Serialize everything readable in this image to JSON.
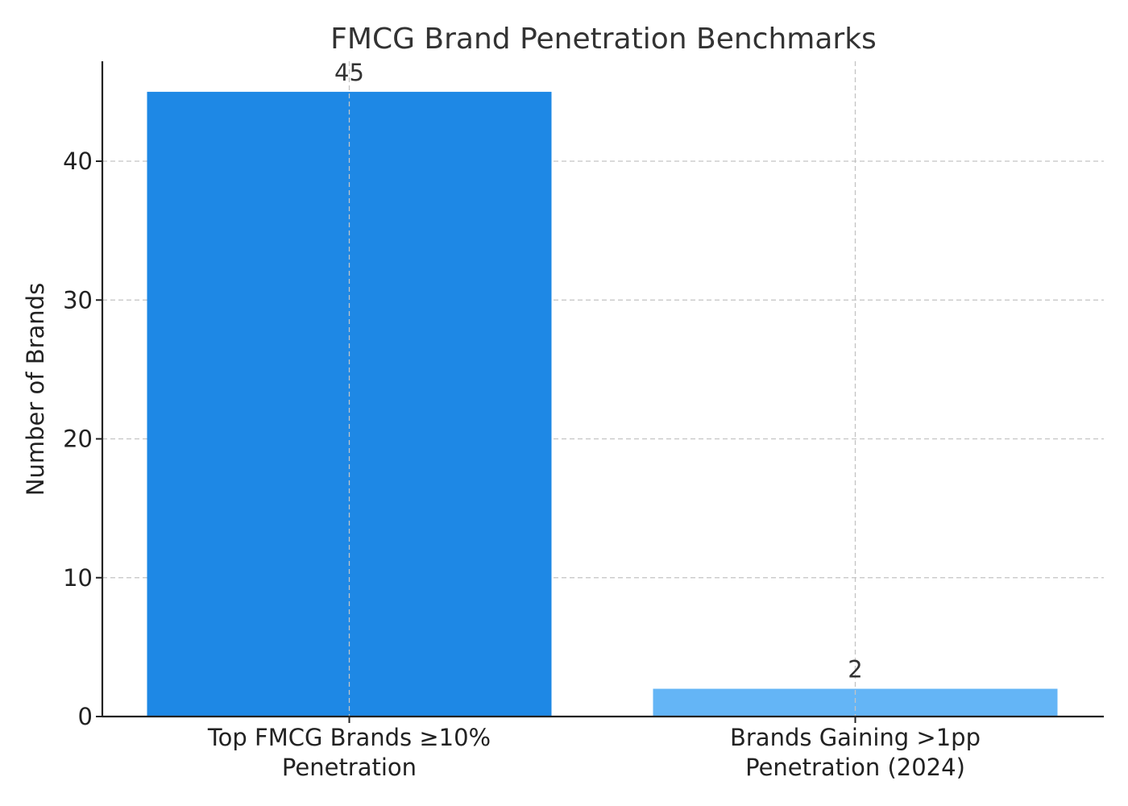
{
  "chart_data": {
    "type": "bar",
    "title": "FMCG Brand Penetration Benchmarks",
    "xlabel": "",
    "ylabel": "Number of Brands",
    "categories": [
      [
        "Top FMCG Brands ≥10%",
        "Penetration"
      ],
      [
        "Brands Gaining >1pp",
        "Penetration (2024)"
      ]
    ],
    "values": [
      45,
      2
    ],
    "data_labels": [
      "45",
      "2"
    ],
    "colors": [
      "#1e88e5",
      "#64b5f6"
    ],
    "ylim": [
      0,
      47.2
    ],
    "yticks": [
      0,
      10,
      20,
      30,
      40
    ],
    "ytick_labels": [
      "0",
      "10",
      "20",
      "30",
      "40"
    ],
    "grid": true
  }
}
